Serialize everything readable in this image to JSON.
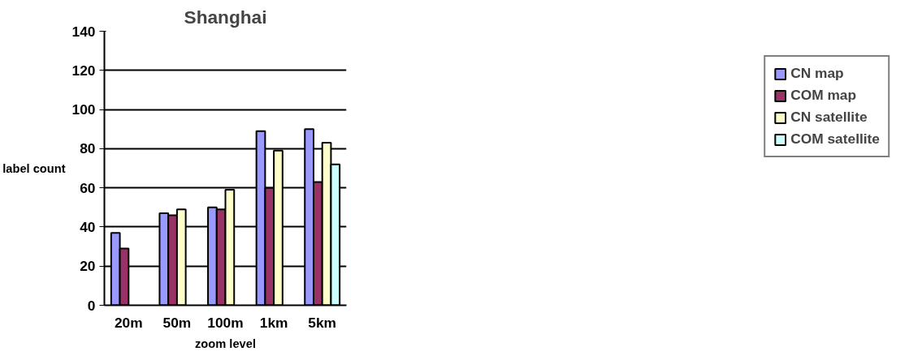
{
  "chart_data": {
    "type": "bar",
    "title": "Shanghai",
    "xlabel": "zoom level",
    "ylabel": "label count",
    "categories": [
      "20m",
      "50m",
      "100m",
      "1km",
      "5km"
    ],
    "series": [
      {
        "name": "CN map",
        "color": "#9999ff",
        "values": [
          37,
          47,
          50,
          89,
          90
        ]
      },
      {
        "name": "COM map",
        "color": "#993366",
        "values": [
          29,
          46,
          49,
          60,
          63
        ]
      },
      {
        "name": "CN satellite",
        "color": "#ffffcc",
        "values": [
          null,
          49,
          59,
          79,
          83
        ]
      },
      {
        "name": "COM satellite",
        "color": "#ccffff",
        "values": [
          null,
          null,
          null,
          null,
          72
        ]
      }
    ],
    "ylim": [
      0,
      140
    ],
    "yticks": [
      0,
      20,
      40,
      60,
      80,
      100,
      120,
      140
    ],
    "grid": "y",
    "legend": "right"
  }
}
